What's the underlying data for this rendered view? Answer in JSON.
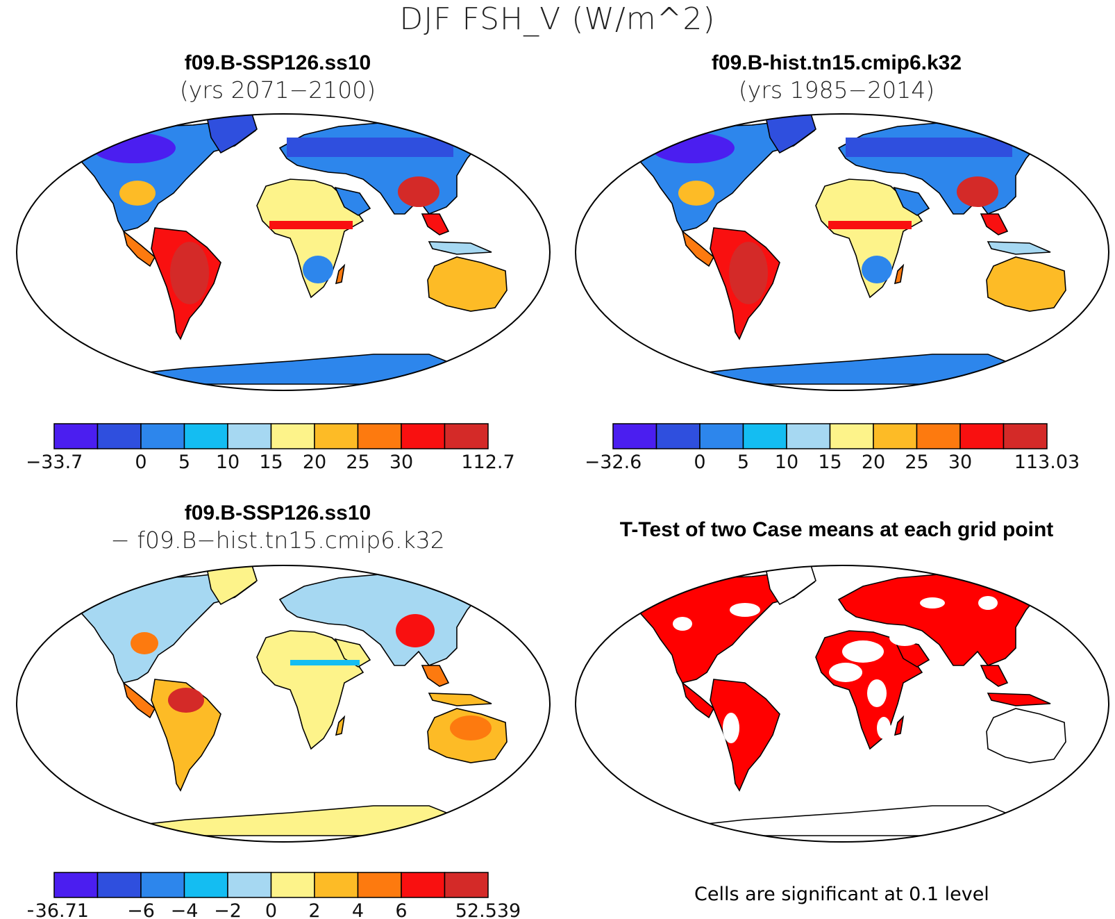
{
  "title": "DJF FSH_V (W/m^2)",
  "colors": {
    "scale": [
      "#4b1ef0",
      "#2f4fde",
      "#2d86ec",
      "#14bdf2",
      "#a6d8f2",
      "#fdf38a",
      "#fdbb26",
      "#fd7a0f",
      "#f91010",
      "#d42a28"
    ],
    "land_outline": "#000000",
    "sig": "#ff0000"
  },
  "panels": [
    {
      "id": "ssp126",
      "title": "f09.B-SSP126.ss10",
      "subtitle": "(yrs 2071−2100)",
      "colorbar": {
        "labels": [
          "−33.7",
          "",
          "0",
          "5",
          "10",
          "15",
          "20",
          "25",
          "30",
          "",
          "112.7"
        ]
      }
    },
    {
      "id": "hist",
      "title": "f09.B-hist.tn15.cmip6.k32",
      "subtitle": "(yrs 1985−2014)",
      "colorbar": {
        "labels": [
          "−32.6",
          "",
          "0",
          "5",
          "10",
          "15",
          "20",
          "25",
          "30",
          "",
          "113.03"
        ]
      }
    },
    {
      "id": "diff",
      "title": "f09.B-SSP126.ss10",
      "subtitle": "− f09.B−hist.tn15.cmip6.k32",
      "colorbar": {
        "labels": [
          "−36.71",
          "",
          "−6",
          "−4",
          "−2",
          "0",
          "2",
          "4",
          "6",
          "",
          "52.539"
        ]
      }
    },
    {
      "id": "ttest",
      "title": "T-Test of two Case means at each grid point",
      "note": "Cells are significant at 0.1 level"
    }
  ]
}
